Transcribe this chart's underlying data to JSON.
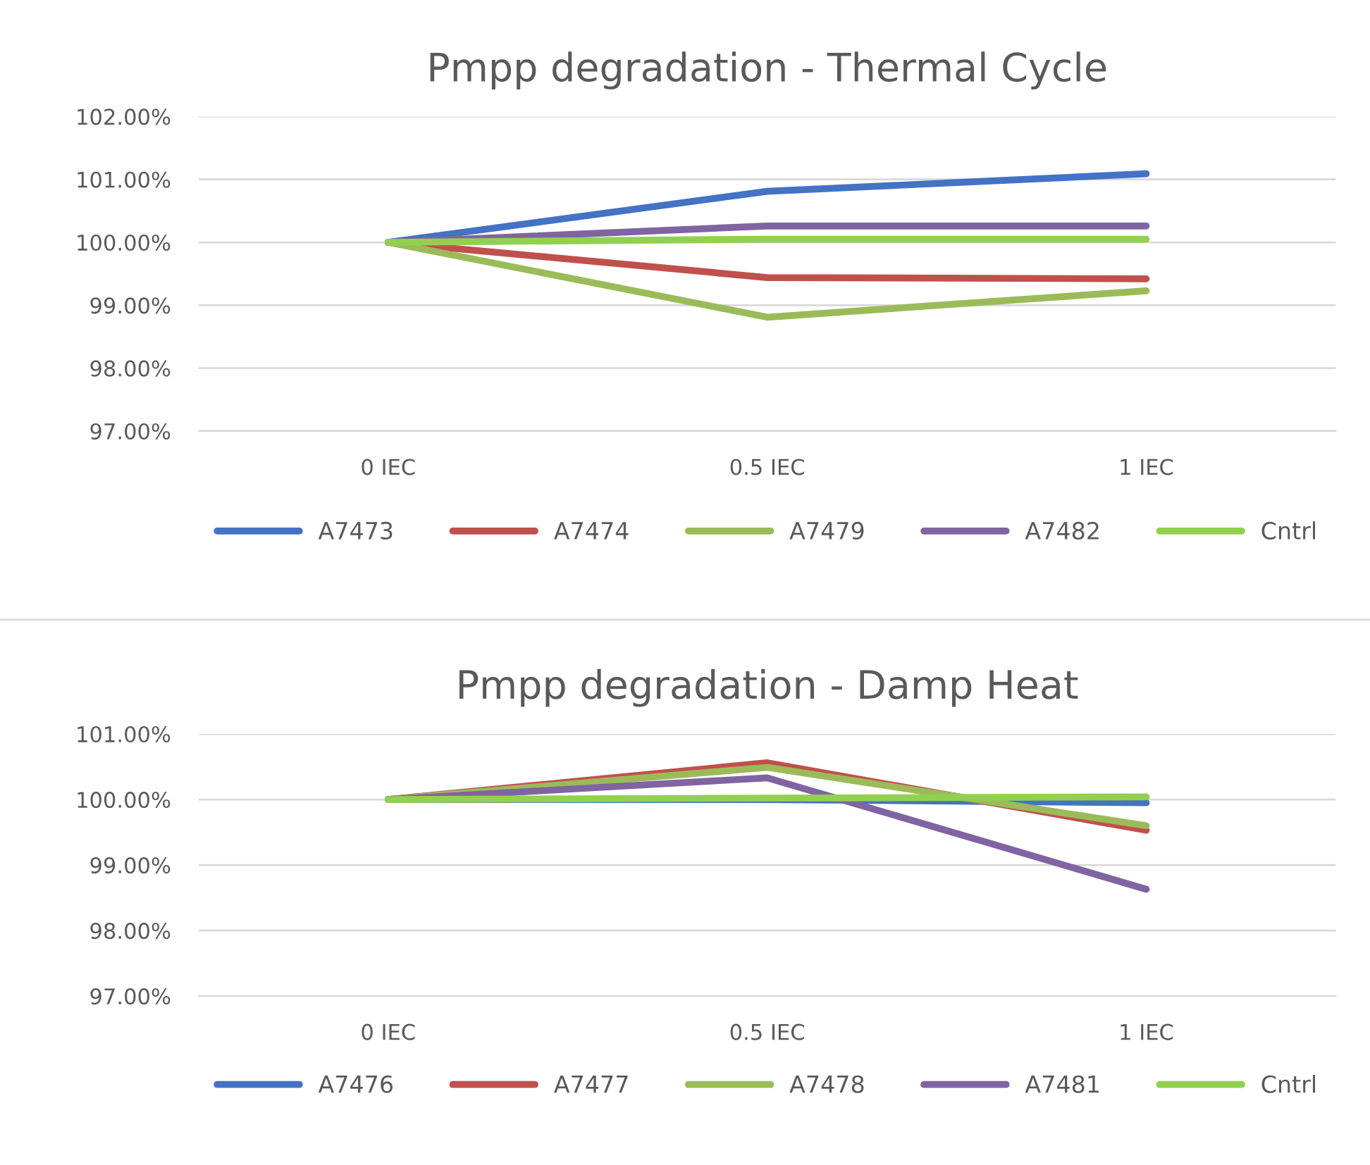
{
  "chart_data": [
    {
      "type": "line",
      "title": "Pmpp degradation - Thermal Cycle",
      "categories": [
        "0 IEC",
        "0.5 IEC",
        "1 IEC"
      ],
      "ylim": [
        97,
        102
      ],
      "yticks": [
        {
          "value": 97,
          "label": "97.00%"
        },
        {
          "value": 98,
          "label": "98.00%"
        },
        {
          "value": 99,
          "label": "99.00%"
        },
        {
          "value": 100,
          "label": "100.00%"
        },
        {
          "value": 101,
          "label": "101.00%"
        },
        {
          "value": 102,
          "label": "102.00%"
        }
      ],
      "grid": "y",
      "legend": "bottom",
      "marker": "none",
      "line_style": "solid",
      "series": [
        {
          "name": "A7473",
          "color": "#4472c4",
          "values": [
            100,
            100.81,
            101.09
          ]
        },
        {
          "name": "A7474",
          "color": "#c0504d",
          "values": [
            100,
            99.44,
            99.42
          ]
        },
        {
          "name": "A7479",
          "color": "#9bbb59",
          "values": [
            100,
            98.81,
            99.23
          ]
        },
        {
          "name": "A7482",
          "color": "#8064a2",
          "values": [
            100,
            100.26,
            100.26
          ]
        },
        {
          "name": "Cntrl",
          "color": "#92d050",
          "values": [
            100,
            100.05,
            100.05
          ]
        }
      ]
    },
    {
      "type": "line",
      "title": "Pmpp degradation - Damp Heat",
      "categories": [
        "0 IEC",
        "0.5 IEC",
        "1 IEC"
      ],
      "ylim": [
        97,
        101
      ],
      "yticks": [
        {
          "value": 97,
          "label": "97.00%"
        },
        {
          "value": 98,
          "label": "98.00%"
        },
        {
          "value": 99,
          "label": "99.00%"
        },
        {
          "value": 100,
          "label": "100.00%"
        },
        {
          "value": 101,
          "label": "101.00%"
        }
      ],
      "grid": "y",
      "legend": "bottom",
      "marker": "none",
      "line_style": "solid",
      "series": [
        {
          "name": "A7476",
          "color": "#4472c4",
          "values": [
            100,
            100.0,
            99.95
          ]
        },
        {
          "name": "A7477",
          "color": "#c0504d",
          "values": [
            100,
            100.56,
            99.53
          ]
        },
        {
          "name": "A7478",
          "color": "#9bbb59",
          "values": [
            100,
            100.49,
            99.6
          ]
        },
        {
          "name": "A7481",
          "color": "#8064a2",
          "values": [
            100,
            100.33,
            98.63
          ]
        },
        {
          "name": "Cntrl",
          "color": "#92d050",
          "values": [
            100,
            100.02,
            100.04
          ]
        }
      ]
    }
  ]
}
